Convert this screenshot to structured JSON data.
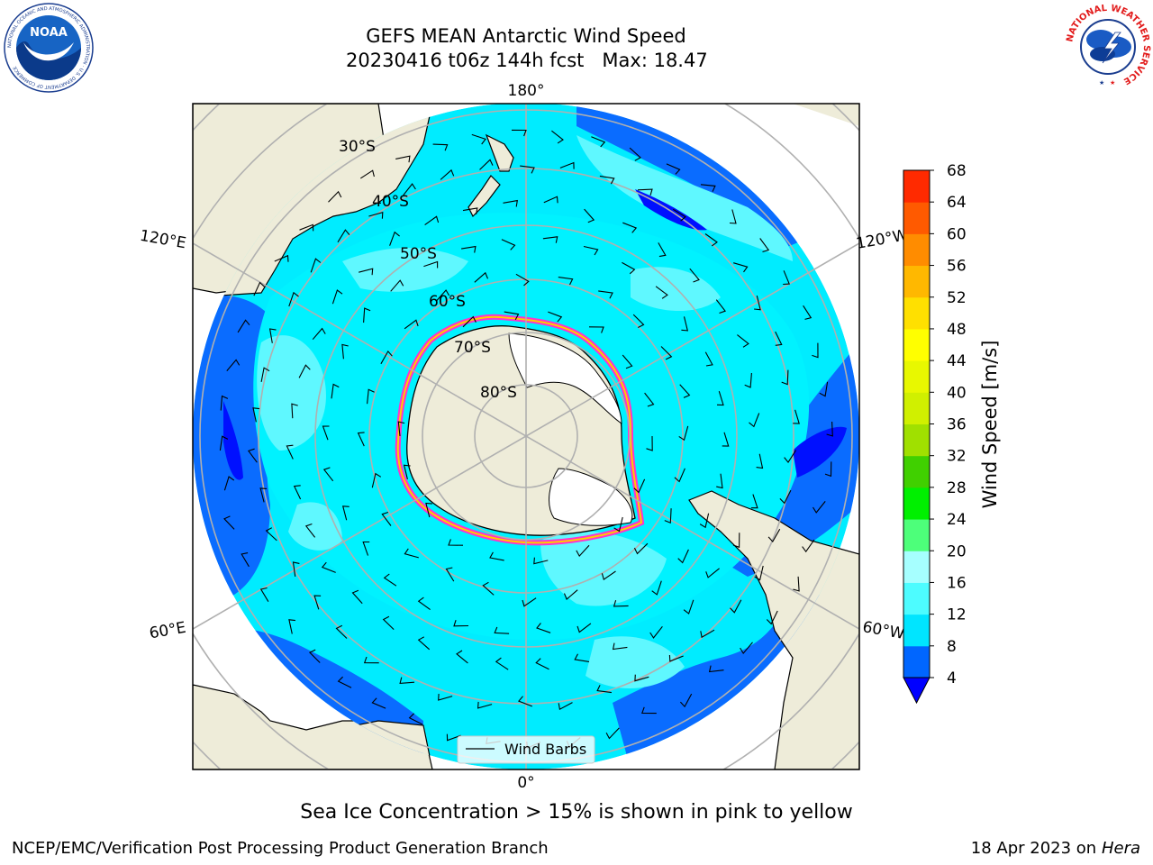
{
  "title": {
    "line1": "GEFS MEAN Antarctic Wind Speed",
    "line2": "20230416 t06z 144h fcst   Max: 18.47"
  },
  "map": {
    "projection": "south-polar-stereographic",
    "longitude_labels": {
      "top": "180°",
      "bottom": "0°",
      "upper_left": "120°E",
      "upper_right": "120°W",
      "lower_left": "60°E",
      "lower_right": "60°W"
    },
    "latitude_labels": [
      "30°S",
      "40°S",
      "50°S",
      "60°S",
      "70°S",
      "80°S"
    ],
    "legend_label": "Wind Barbs",
    "land_color": "#eeecd9",
    "ice_edge_colors": [
      "#ff33cc",
      "#ffcc00"
    ]
  },
  "colorbar": {
    "label": "Wind Speed [m/s]",
    "ticks": [
      "4",
      "8",
      "12",
      "16",
      "20",
      "24",
      "28",
      "32",
      "36",
      "40",
      "44",
      "48",
      "52",
      "56",
      "60",
      "64",
      "68"
    ],
    "colors": [
      "#0066ff",
      "#00e5ff",
      "#4dfcff",
      "#a6ffff",
      "#4dff7a",
      "#00f000",
      "#40d000",
      "#a0e000",
      "#d0f000",
      "#e8f800",
      "#ffff00",
      "#ffe000",
      "#ffb800",
      "#ff8c00",
      "#ff5a00",
      "#ff2a00"
    ],
    "underflow_color": "#0000ff"
  },
  "caption": "Sea Ice Concentration > 15% is shown in pink to yellow",
  "footer": {
    "left": "NCEP/EMC/Verification Post Processing Product Generation Branch",
    "date": "18 Apr 2023 on ",
    "host": "Hera"
  },
  "logos": {
    "noaa_text": "NOAA",
    "noaa_ring_text": "NATIONAL OCEANIC AND ATMOSPHERIC ADMINISTRATION · U.S. DEPARTMENT OF COMMERCE",
    "nws_ring_text": "NATIONAL WEATHER SERVICE"
  }
}
